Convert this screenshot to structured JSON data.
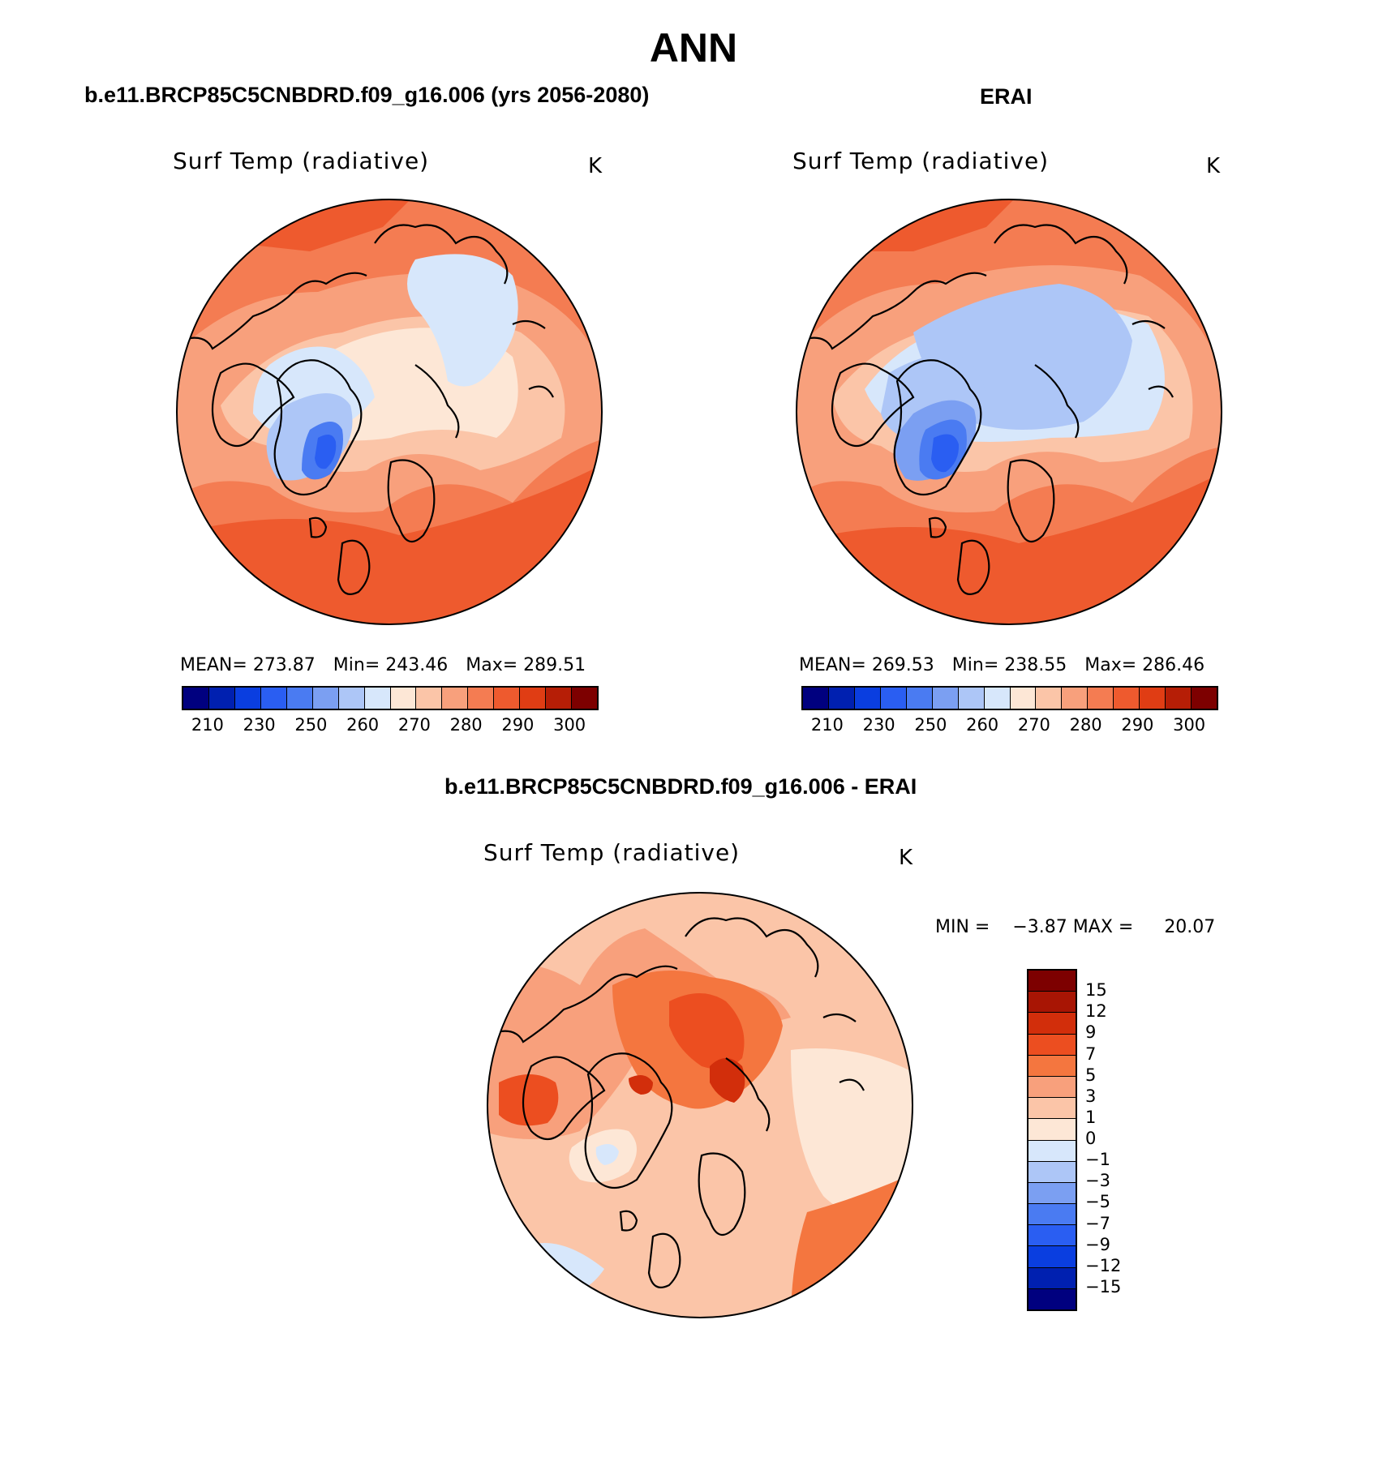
{
  "figure": {
    "title": "ANN"
  },
  "panels": [
    {
      "id": "model",
      "title": "b.e11.BRCP85C5CNBDRD.f09_g16.006 (yrs 2056-2080)",
      "variable": "Surf Temp (radiative)",
      "units": "K",
      "stats": {
        "mean": "MEAN= 273.87",
        "min": "Min= 243.46",
        "max": "Max= 289.51"
      },
      "colorbar_ticks": [
        "210",
        "230",
        "250",
        "260",
        "270",
        "280",
        "290",
        "300"
      ]
    },
    {
      "id": "obs",
      "title": "ERAI",
      "variable": "Surf Temp (radiative)",
      "units": "K",
      "stats": {
        "mean": "MEAN= 269.53",
        "min": "Min= 238.55",
        "max": "Max= 286.46"
      },
      "colorbar_ticks": [
        "210",
        "230",
        "250",
        "260",
        "270",
        "280",
        "290",
        "300"
      ]
    },
    {
      "id": "diff",
      "title": "b.e11.BRCP85C5CNBDRD.f09_g16.006 - ERAI",
      "variable": "Surf Temp (radiative)",
      "units": "K",
      "min_label": "MIN =",
      "min_value": "−3.87",
      "max_label": "MAX =",
      "max_value": "20.07",
      "colorbar_ticks": [
        "15",
        "12",
        "9",
        "7",
        "5",
        "3",
        "1",
        "0",
        "−1",
        "−3",
        "−5",
        "−7",
        "−9",
        "−12",
        "−15"
      ]
    }
  ],
  "colors": {
    "abs_scale": [
      "#00007f",
      "#0020b0",
      "#0a3ee0",
      "#2a5ef2",
      "#4a7bf2",
      "#7b9ff2",
      "#adc6f7",
      "#d7e7fb",
      "#fde7d6",
      "#fbc5a8",
      "#f8a07c",
      "#f47c52",
      "#ee5a2e",
      "#e03d14",
      "#b61e06",
      "#7d0000"
    ],
    "diff_scale": [
      "#7d0000",
      "#a81504",
      "#d22e0b",
      "#ec4e20",
      "#f4763f",
      "#f8a07c",
      "#fbc5a8",
      "#fde7d6",
      "#d7e7fb",
      "#adc6f7",
      "#7b9ff2",
      "#4a7bf2",
      "#2a5ef2",
      "#0a3ee0",
      "#0020b0",
      "#00007f"
    ]
  }
}
